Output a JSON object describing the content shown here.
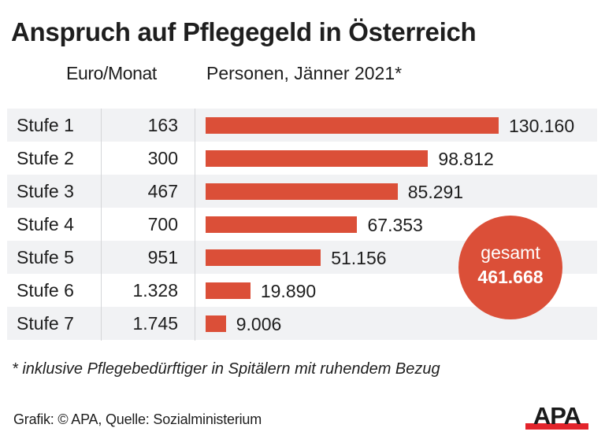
{
  "colors": {
    "accent": "#db4f38",
    "row_shade": "#f1f2f4",
    "text": "#1e1e1e",
    "logo_black": "#1a1a1a",
    "logo_red": "#e3242b"
  },
  "header": {
    "title": "Anspruch auf Pflegegeld in Österreich",
    "col_euro": "Euro/Monat",
    "col_persons": "Personen, Jänner 2021*"
  },
  "chart_data": {
    "type": "bar",
    "orientation": "horizontal",
    "title": "Anspruch auf Pflegegeld in Österreich",
    "xlabel": "Personen, Jänner 2021*",
    "ylabel": "",
    "grid": false,
    "xlim": [
      0,
      130160
    ],
    "categories": [
      "Stufe 1",
      "Stufe 2",
      "Stufe 3",
      "Stufe 4",
      "Stufe 5",
      "Stufe 6",
      "Stufe 7"
    ],
    "euro_per_month": [
      "163",
      "300",
      "467",
      "700",
      "951",
      "1.328",
      "1.745"
    ],
    "values": [
      130160,
      98812,
      85291,
      67353,
      51156,
      19890,
      9006
    ],
    "value_labels": [
      "130.160",
      "98.812",
      "85.291",
      "67.353",
      "51.156",
      "19.890",
      "9.006"
    ],
    "total": {
      "label": "gesamt",
      "value": 461668,
      "value_label": "461.668"
    }
  },
  "footer": {
    "footnote": "* inklusive Pflegebedürftiger in Spitälern mit ruhendem Bezug",
    "source": "Grafik: © APA, Quelle: Sozialministerium",
    "logo_text": "APA"
  }
}
